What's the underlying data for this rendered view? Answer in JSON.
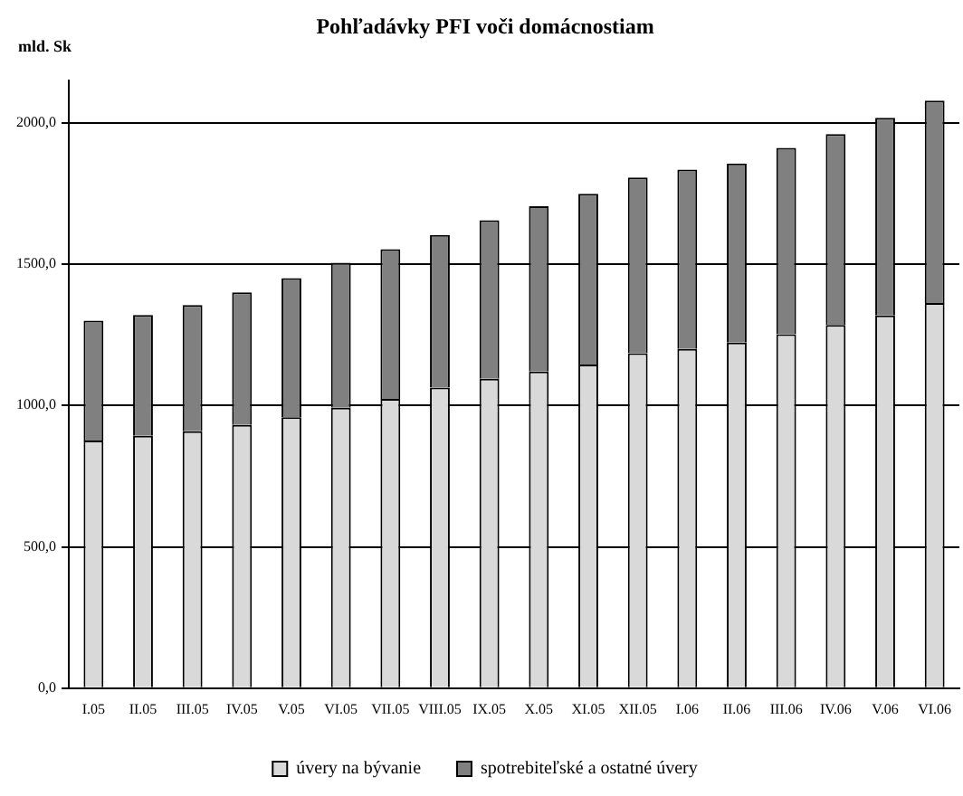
{
  "chart_data": {
    "type": "bar",
    "title": "Pohľadávky PFI voči domácnostiam",
    "ylabel": "mld. Sk",
    "categories": [
      "I.05",
      "II.05",
      "III.05",
      "IV.05",
      "V.05",
      "VI.05",
      "VII.05",
      "VIII.05",
      "IX.05",
      "X.05",
      "XI.05",
      "XII.05",
      "I.06",
      "II.06",
      "III.06",
      "IV.06",
      "V.06",
      "VI.06"
    ],
    "stacked": true,
    "series": [
      {
        "name": "úvery na bývanie",
        "color": "#d9d9d9",
        "values": [
          876,
          893,
          909,
          931,
          958,
          992,
          1023,
          1063,
          1094,
          1120,
          1145,
          1185,
          1200,
          1222,
          1252,
          1285,
          1318,
          1362
        ]
      },
      {
        "name": "spotrebiteľské a ostatné úvery",
        "color": "#808080",
        "values": [
          424,
          427,
          446,
          469,
          492,
          513,
          530,
          540,
          561,
          585,
          604,
          621,
          634,
          634,
          659,
          675,
          699,
          716
        ]
      }
    ],
    "ylim": [
      0,
      2150
    ],
    "yticks": [
      {
        "value": 0,
        "label": "0,0"
      },
      {
        "value": 500,
        "label": "500,0"
      },
      {
        "value": 1000,
        "label": "1000,0"
      },
      {
        "value": 1500,
        "label": "1500,0"
      },
      {
        "value": 2000,
        "label": "2000,0"
      }
    ],
    "grid": "y",
    "legend": "bottom"
  }
}
